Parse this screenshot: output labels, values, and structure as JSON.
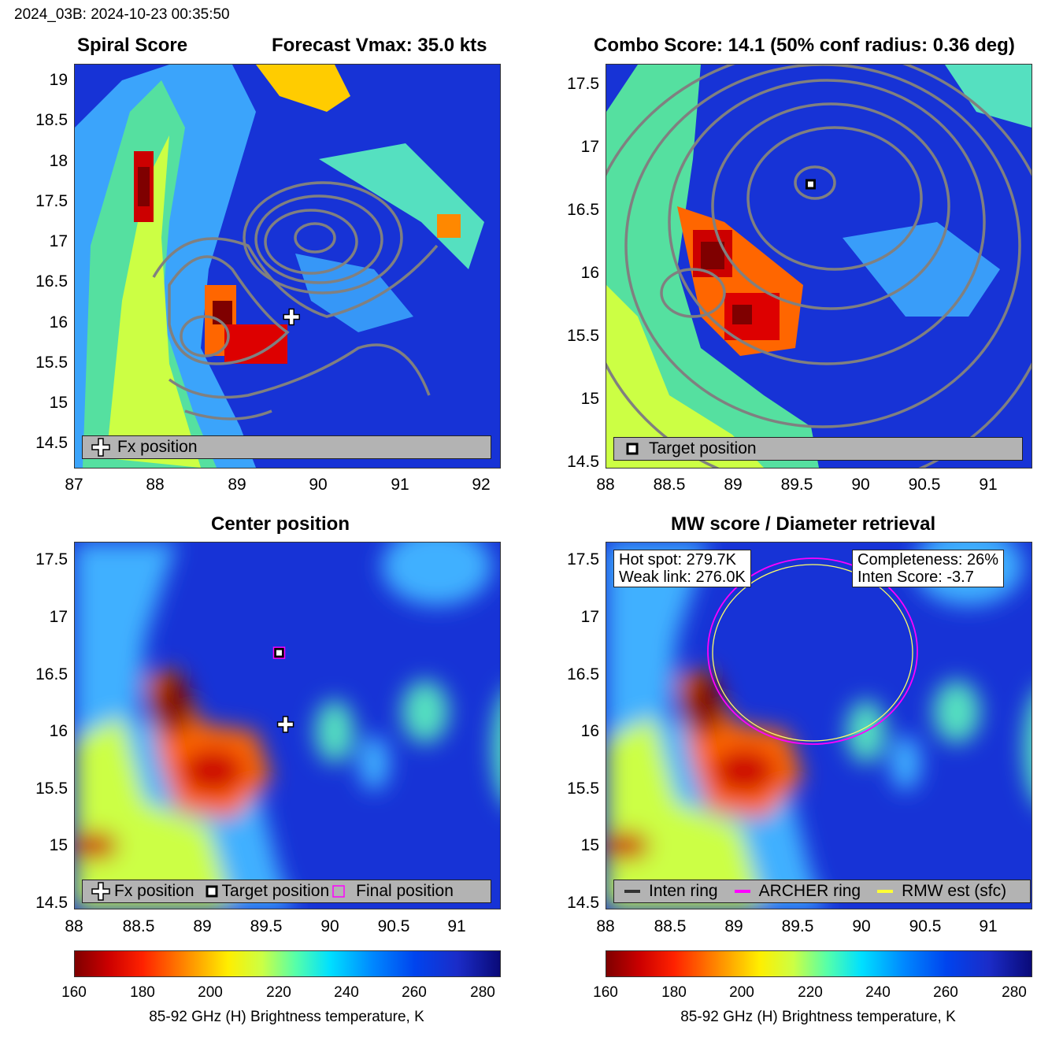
{
  "header": "2024_03B: 2024-10-23 00:35:50",
  "panels": {
    "spiral": {
      "title_left": "Spiral Score",
      "title_right": "Forecast Vmax: 35.0 kts",
      "xticks": [
        "87",
        "88",
        "89",
        "90",
        "91",
        "92"
      ],
      "yticks": [
        "19",
        "18.5",
        "18",
        "17.5",
        "17",
        "16.5",
        "16",
        "15.5",
        "15",
        "14.5"
      ],
      "legend": [
        "Fx position"
      ],
      "fx_position": {
        "lon": 89.65,
        "lat": 16.07
      }
    },
    "combo": {
      "title": "Combo Score: 14.1  (50% conf radius: 0.36 deg)",
      "xticks": [
        "88",
        "88.5",
        "89",
        "89.5",
        "90",
        "90.5",
        "91"
      ],
      "yticks": [
        "17.5",
        "17",
        "16.5",
        "16",
        "15.5",
        "15",
        "14.5"
      ],
      "legend": [
        "Target position"
      ],
      "target_position": {
        "lon": 89.6,
        "lat": 16.7
      }
    },
    "center": {
      "title": "Center position",
      "xticks": [
        "88",
        "88.5",
        "89",
        "89.5",
        "90",
        "90.5",
        "91"
      ],
      "yticks": [
        "17.5",
        "17",
        "16.5",
        "16",
        "15.5",
        "15",
        "14.5"
      ],
      "legend": [
        "Fx position",
        "Target position",
        "Final position"
      ]
    },
    "mw": {
      "title": "MW score / Diameter retrieval",
      "xticks": [
        "88",
        "88.5",
        "89",
        "89.5",
        "90",
        "90.5",
        "91"
      ],
      "yticks": [
        "17.5",
        "17",
        "16.5",
        "16",
        "15.5",
        "15",
        "14.5"
      ],
      "hot_spot": "Hot spot: 279.7K",
      "weak_link": "Weak link: 276.0K",
      "completeness": "Completeness: 26%",
      "inten_score": "Inten Score: -3.7",
      "legend": [
        "Inten ring",
        "ARCHER ring",
        "RMW est (sfc)"
      ]
    }
  },
  "colorbar": {
    "ticks": [
      "160",
      "180",
      "200",
      "220",
      "240",
      "260",
      "280"
    ],
    "label": "85-92 GHz (H) Brightness temperature, K"
  },
  "colors": {
    "cold_core": "#7f0000",
    "warm_background": "#1733d6",
    "contour": "#808080",
    "archer_ring": "#ff00ff",
    "rmw_ring": "#ffff66"
  }
}
